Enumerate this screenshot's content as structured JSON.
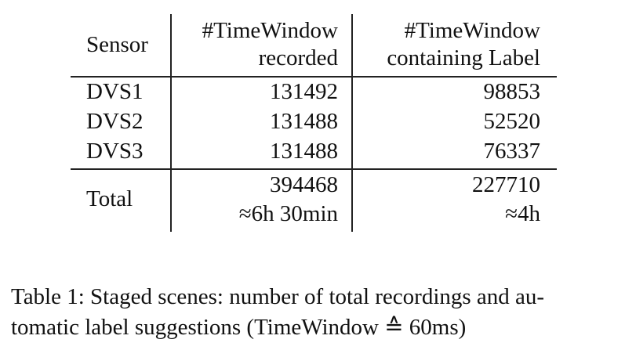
{
  "table": {
    "header": {
      "sensor": "Sensor",
      "col1_line1": "#TimeWindow",
      "col1_line2": "recorded",
      "col2_line1": "#TimeWindow",
      "col2_line2": "containing Label"
    },
    "rows": [
      {
        "sensor": "DVS1",
        "recorded": "131492",
        "label": "98853"
      },
      {
        "sensor": "DVS2",
        "recorded": "131488",
        "label": "52520"
      },
      {
        "sensor": "DVS3",
        "recorded": "131488",
        "label": "76337"
      }
    ],
    "total": {
      "label": "Total",
      "recorded": "394468",
      "recorded_time": "≈6h 30min",
      "containing": "227710",
      "containing_time": "≈4h"
    }
  },
  "caption": {
    "line1": "Table 1: Staged scenes: number of total recordings and au-",
    "line2": "tomatic label suggestions (TimeWindow ≙ 60ms)"
  }
}
